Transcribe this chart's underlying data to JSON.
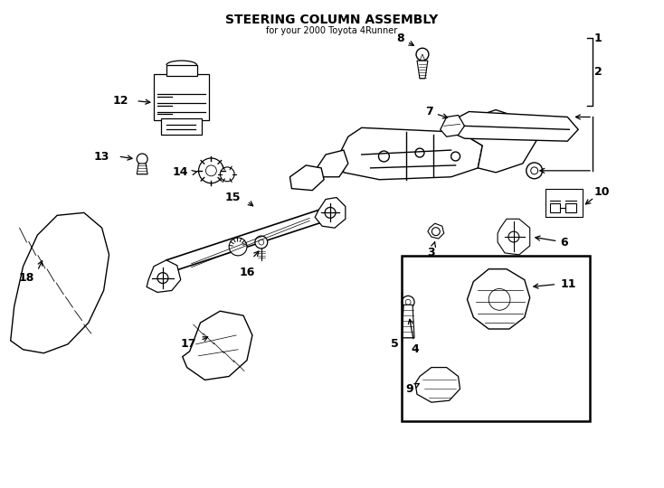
{
  "title": "STEERING COLUMN ASSEMBLY",
  "subtitle": "for your 2000 Toyota 4Runner",
  "bg_color": "#ffffff",
  "line_color": "#000000",
  "label_color": "#000000",
  "fig_width": 7.34,
  "fig_height": 5.4,
  "dpi": 100
}
